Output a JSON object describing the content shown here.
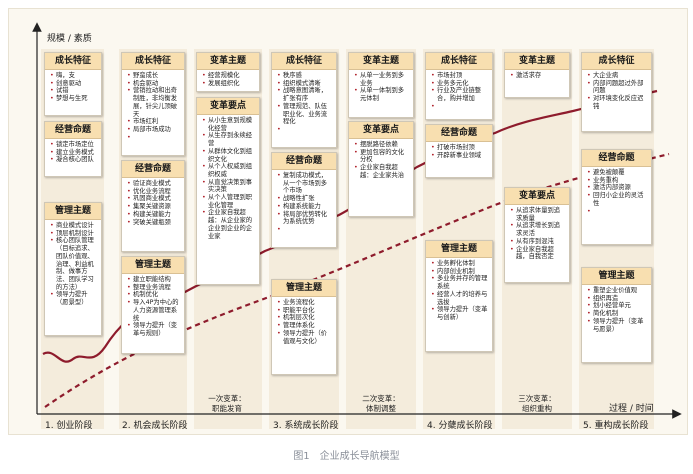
{
  "axes": {
    "y_label": "规模 / 素质",
    "x_label": "过程 / 时间"
  },
  "colors": {
    "curve": "#8e1b2c",
    "card_header": "#f8dfb0",
    "column_band": "#f4ecdc"
  },
  "cards": {
    "c1_traits": {
      "title": "成长特征",
      "items": [
        "嗨，支",
        "创意驱动",
        "试错",
        "梦想与生死"
      ]
    },
    "c1_business": {
      "title": "经营命题",
      "items": [
        "锁定市场定位",
        "建立业务模式",
        "凝合核心团队"
      ]
    },
    "c1_management": {
      "title": "管理主题",
      "items": [
        "商业模式设计",
        "顶层机制设计",
        "核心团队管理（目标追求、团队价值观、治理、利益机制、做事方法、团队学习的方法）",
        "领导力提升（愿景型）"
      ]
    },
    "c2_traits": {
      "title": "成长特征",
      "items": [
        "野蛮成长",
        "机会驱动",
        "营销拉动和出奇制胜，非均衡发展，针尖儿顶破天",
        "市场红利",
        "局部市场成功"
      ]
    },
    "c2_business": {
      "title": "经营命题",
      "items": [
        "验证商业模式",
        "优化业务流程",
        "巩固商业模式",
        "集聚关键资源",
        "构建关键能力",
        "突破关键瓶颈"
      ]
    },
    "c2_management": {
      "title": "管理主题",
      "items": [
        "建立职能结构",
        "整理业务流程",
        "机制优化",
        "导入4P为中心的人力资源管理系统",
        "领导力提升（变革与规则）"
      ]
    },
    "c3_theme": {
      "title": "变革主题",
      "items": [
        "经营规模化",
        "发展组织化"
      ]
    },
    "c3_points": {
      "title": "变革要点",
      "items": [
        "从小生意到规模化经营",
        "从生存到永续经营",
        "从群体文化到组织文化",
        "从个人权威到组织权威",
        "从直觉决策到事实决策",
        "从个人管理到职业化管理",
        "企业家自我超越：从企业家的企业到企业的企业家"
      ]
    },
    "c4_traits": {
      "title": "成长特征",
      "items": [
        "秩序感",
        "组织模式清晰",
        "战略意图清晰，扩张有序",
        "管理规范、队伍职业化、业务流程化"
      ]
    },
    "c4_business": {
      "title": "经营命题",
      "items": [
        "复制成功模式，从一个市场到多个市场",
        "战略性扩张",
        "构建系统能力",
        "将局部优势转化为系统优势"
      ]
    },
    "c4_management": {
      "title": "管理主题",
      "items": [
        "业务流程化",
        "职能平台化",
        "机制层次化",
        "管理体系化",
        "领导力提升（价值观与文化）"
      ]
    },
    "c5_theme": {
      "title": "变革主题",
      "items": [
        "从单一业务到多业务",
        "从单一体制到多元体制"
      ]
    },
    "c5_points": {
      "title": "变革要点",
      "items": [
        "摆脱路径依赖",
        "更加包容的文化分权",
        "企业家自我超越：企业家共治"
      ]
    },
    "c6_traits": {
      "title": "成长特征",
      "items": [
        "市场封顶",
        "业务多元化",
        "行业及产业链整合，购并增加"
      ]
    },
    "c6_business": {
      "title": "经营命题",
      "items": [
        "打破市场封顶",
        "开辟新事业领域"
      ]
    },
    "c6_management": {
      "title": "管理主题",
      "items": [
        "业务孵化体制",
        "内部创业机制",
        "多业务并存的管理系统",
        "经营人才的培养与选拔",
        "领导力提升（变革与创新）"
      ]
    },
    "c7_theme": {
      "title": "变革主题",
      "items": [
        "激活求存"
      ]
    },
    "c7_points": {
      "title": "变革要点",
      "items": [
        "从追求体量到追求质量",
        "从追求增长到追求灵活",
        "从有序到混沌",
        "企业家自我超越，自我否定"
      ]
    },
    "c8_traits": {
      "title": "成长特征",
      "items": [
        "大企业病",
        "内部问题超过外部问题",
        "对环境变化反应迟钝"
      ]
    },
    "c8_business": {
      "title": "经营命题",
      "items": [
        "避免被颠覆",
        "业务重构",
        "激活内部资源",
        "回归小企业的灵活性"
      ]
    },
    "c8_management": {
      "title": "管理主题",
      "items": [
        "重塑企业价值观",
        "组织再造",
        "划小经营单元",
        "简化机制",
        "领导力提升（变革与愿景）"
      ]
    }
  },
  "transitions": [
    {
      "title": "一次变革：",
      "subtitle": "职能发育"
    },
    {
      "title": "二次变革：",
      "subtitle": "体制调整"
    },
    {
      "title": "三次变革：",
      "subtitle": "组织重构"
    }
  ],
  "stages": [
    "1. 创业阶段",
    "2. 机会成长阶段",
    "3. 系统成长阶段",
    "4. 分蘖成长阶段",
    "5. 重构成长阶段"
  ],
  "caption": "图1　企业成长导航模型"
}
